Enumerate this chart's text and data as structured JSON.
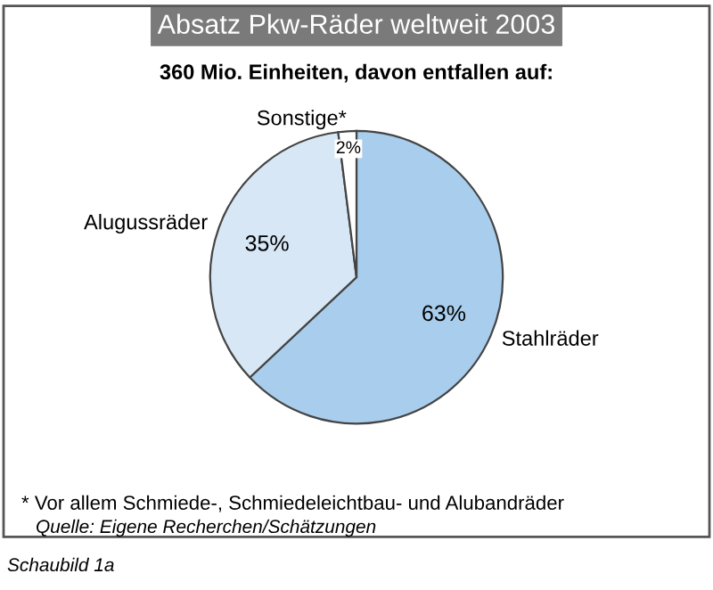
{
  "chart_data": {
    "type": "pie",
    "title": "Absatz Pkw-Räder weltweit 2003",
    "subtitle": "360 Mio. Einheiten, davon entfallen auf:",
    "categories": [
      "Stahlräder",
      "Alugussräder",
      "Sonstige*"
    ],
    "values": [
      63,
      35,
      2
    ],
    "colors": [
      "#a9cdec",
      "#d7e7f5",
      "#ffffff"
    ],
    "value_labels": [
      "63%",
      "35%",
      "2%"
    ],
    "annotations": [
      "* Vor allem Schmiede-, Schmiedeleichtbau- und Alubandräder",
      "Quelle: Eigene Recherchen/Schätzungen",
      "Schaubild 1a"
    ]
  }
}
